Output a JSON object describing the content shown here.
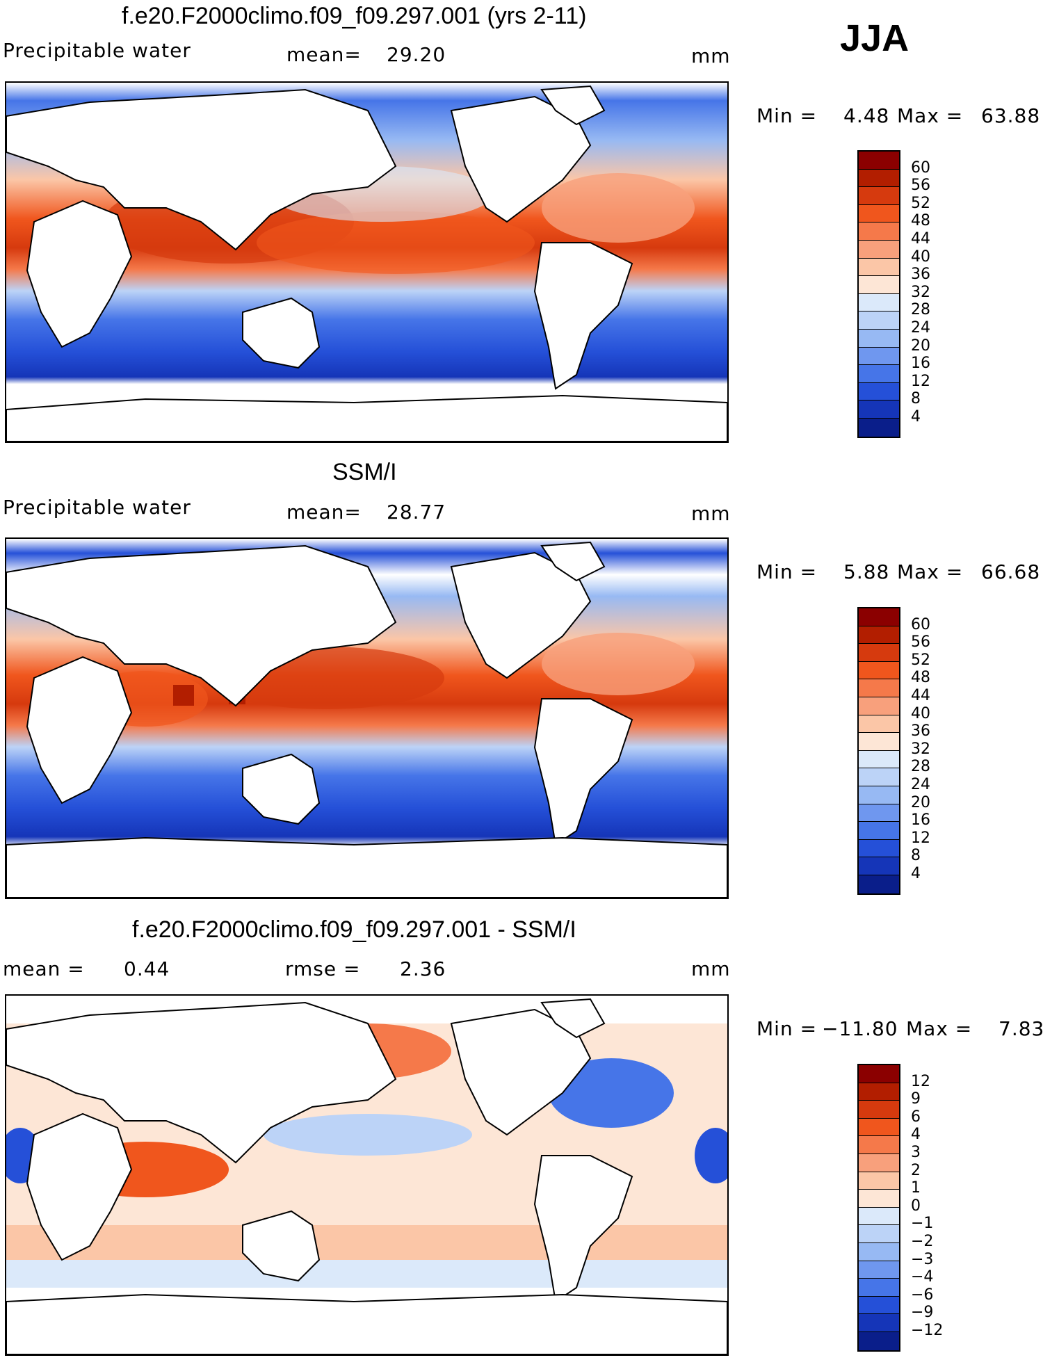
{
  "season": "JJA",
  "panels": [
    {
      "title": "f.e20.F2000climo.f09_f09.297.001 (yrs 2-11)",
      "left_label": "Precipitable water",
      "center_label": "mean=",
      "center_value": "29.20",
      "units": "mm",
      "min_label": "Min =",
      "min_value": "4.48",
      "max_label": "Max =",
      "max_value": "63.88",
      "colorbar": {
        "labels": [
          "60",
          "56",
          "52",
          "48",
          "44",
          "40",
          "36",
          "32",
          "28",
          "24",
          "20",
          "16",
          "12",
          "8",
          "4"
        ],
        "colors": [
          "#8b0000",
          "#b21e00",
          "#d63a0e",
          "#f0561d",
          "#f5794a",
          "#f8a07c",
          "#fbc6a7",
          "#fde6d6",
          "#dbe9fa",
          "#bcd3f7",
          "#97b9f3",
          "#6f97ef",
          "#4675e8",
          "#2550d8",
          "#1535b8",
          "#0a1e8a"
        ]
      }
    },
    {
      "title": "SSM/I",
      "left_label": "Precipitable water",
      "center_label": "mean=",
      "center_value": "28.77",
      "units": "mm",
      "min_label": "Min =",
      "min_value": "5.88",
      "max_label": "Max =",
      "max_value": "66.68",
      "colorbar": {
        "labels": [
          "60",
          "56",
          "52",
          "48",
          "44",
          "40",
          "36",
          "32",
          "28",
          "24",
          "20",
          "16",
          "12",
          "8",
          "4"
        ],
        "colors": [
          "#8b0000",
          "#b21e00",
          "#d63a0e",
          "#f0561d",
          "#f5794a",
          "#f8a07c",
          "#fbc6a7",
          "#fde6d6",
          "#dbe9fa",
          "#bcd3f7",
          "#97b9f3",
          "#6f97ef",
          "#4675e8",
          "#2550d8",
          "#1535b8",
          "#0a1e8a"
        ]
      }
    },
    {
      "title": "f.e20.F2000climo.f09_f09.297.001 - SSM/I",
      "left_label": "mean =",
      "left_value": "0.44",
      "center_label": "rmse =",
      "center_value": "2.36",
      "units": "mm",
      "min_label": "Min =",
      "min_value": "−11.80",
      "max_label": "Max =",
      "max_value": "7.83",
      "colorbar": {
        "labels": [
          "12",
          "9",
          "6",
          "4",
          "3",
          "2",
          "1",
          "0",
          "−1",
          "−2",
          "−3",
          "−4",
          "−6",
          "−9",
          "−12"
        ],
        "colors": [
          "#8b0000",
          "#b21e00",
          "#d63a0e",
          "#f0561d",
          "#f5794a",
          "#f8a07c",
          "#fbc6a7",
          "#fde6d6",
          "#dbe9fa",
          "#bcd3f7",
          "#97b9f3",
          "#6f97ef",
          "#4675e8",
          "#2550d8",
          "#1535b8",
          "#0a1e8a"
        ]
      }
    }
  ]
}
